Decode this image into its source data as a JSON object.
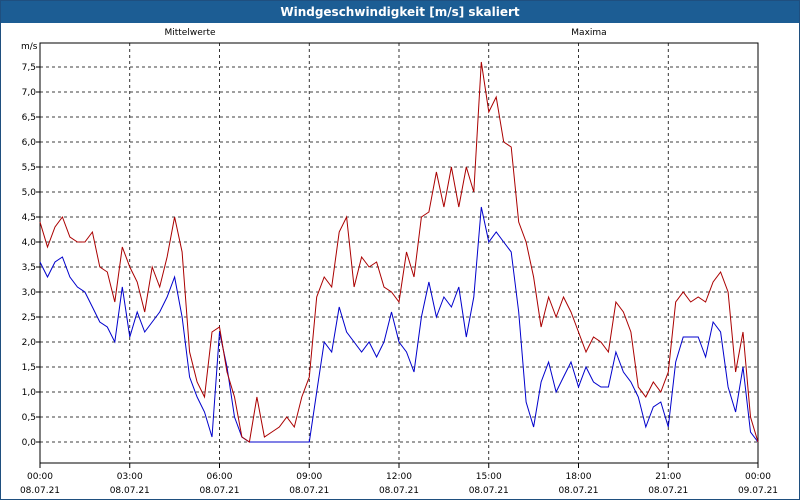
{
  "window": {
    "title": "Windgeschwindigkeit [m/s] skaliert"
  },
  "colors": {
    "mean": "#0000cc",
    "max": "#aa0000",
    "grid": "#000000",
    "titlebar": "#1c5d94"
  },
  "chart_data": {
    "type": "line",
    "title": "Windgeschwindigkeit [m/s] skaliert",
    "ylabel": "m/s",
    "xlabel": "",
    "ylim": [
      0,
      7.5
    ],
    "y_ticks": [
      "0,0",
      "0,5",
      "1,0",
      "1,5",
      "2,0",
      "2,5",
      "3,0",
      "3,5",
      "4,0",
      "4,5",
      "5,0",
      "5,5",
      "6,0",
      "6,5",
      "7,0",
      "7,5"
    ],
    "xlim": [
      0,
      24
    ],
    "x_ticks": [
      {
        "time": "00:00",
        "date": "08.07.21"
      },
      {
        "time": "03:00",
        "date": "08.07.21"
      },
      {
        "time": "06:00",
        "date": "08.07.21"
      },
      {
        "time": "09:00",
        "date": "08.07.21"
      },
      {
        "time": "12:00",
        "date": "08.07.21"
      },
      {
        "time": "15:00",
        "date": "08.07.21"
      },
      {
        "time": "18:00",
        "date": "08.07.21"
      },
      {
        "time": "21:00",
        "date": "08.07.21"
      },
      {
        "time": "00:00",
        "date": "09.07.21"
      }
    ],
    "grid": true,
    "series": [
      {
        "name": "Mittelwerte",
        "key": "mean",
        "x": [
          0,
          0.25,
          0.5,
          0.75,
          1,
          1.25,
          1.5,
          1.75,
          2,
          2.25,
          2.5,
          2.75,
          3,
          3.25,
          3.5,
          3.75,
          4,
          4.25,
          4.5,
          4.75,
          5,
          5.25,
          5.5,
          5.75,
          6,
          6.25,
          6.5,
          6.75,
          7,
          7.25,
          7.5,
          7.75,
          8,
          8.25,
          8.5,
          8.75,
          9,
          9.25,
          9.5,
          9.75,
          10,
          10.25,
          10.5,
          10.75,
          11,
          11.25,
          11.5,
          11.75,
          12,
          12.25,
          12.5,
          12.75,
          13,
          13.25,
          13.5,
          13.75,
          14,
          14.25,
          14.5,
          14.75,
          15,
          15.25,
          15.5,
          15.75,
          16,
          16.25,
          16.5,
          16.75,
          17,
          17.25,
          17.5,
          17.75,
          18,
          18.25,
          18.5,
          18.75,
          19,
          19.25,
          19.5,
          19.75,
          20,
          20.25,
          20.5,
          20.75,
          21,
          21.25,
          21.5,
          21.75,
          22,
          22.25,
          22.5,
          22.75,
          23,
          23.25,
          23.5,
          23.75,
          24
        ],
        "values": [
          3.6,
          3.3,
          3.6,
          3.7,
          3.3,
          3.1,
          3.0,
          2.7,
          2.4,
          2.3,
          2.0,
          3.1,
          2.1,
          2.6,
          2.2,
          2.4,
          2.6,
          2.9,
          3.3,
          2.5,
          1.3,
          0.9,
          0.6,
          0.1,
          2.2,
          1.5,
          0.5,
          0.1,
          0.0,
          0.0,
          0.0,
          0.0,
          0.0,
          0.0,
          0.0,
          0.0,
          0.0,
          1.0,
          2.0,
          1.8,
          2.7,
          2.2,
          2.0,
          1.8,
          2.0,
          1.7,
          2.0,
          2.6,
          2.0,
          1.8,
          1.4,
          2.5,
          3.2,
          2.5,
          2.9,
          2.7,
          3.1,
          2.1,
          2.9,
          4.7,
          4.0,
          4.2,
          4.0,
          3.8,
          2.6,
          0.8,
          0.3,
          1.2,
          1.6,
          1.0,
          1.3,
          1.6,
          1.1,
          1.5,
          1.2,
          1.1,
          1.1,
          1.8,
          1.4,
          1.2,
          0.9,
          0.3,
          0.7,
          0.8,
          0.3,
          1.6,
          2.1,
          2.1,
          2.1,
          1.7,
          2.4,
          2.2,
          1.1,
          0.6,
          1.5,
          0.2,
          0.0
        ]
      },
      {
        "name": "Maxima",
        "key": "max",
        "x": [
          0,
          0.25,
          0.5,
          0.75,
          1,
          1.25,
          1.5,
          1.75,
          2,
          2.25,
          2.5,
          2.75,
          3,
          3.25,
          3.5,
          3.75,
          4,
          4.25,
          4.5,
          4.75,
          5,
          5.25,
          5.5,
          5.75,
          6,
          6.25,
          6.5,
          6.75,
          7,
          7.25,
          7.5,
          7.75,
          8,
          8.25,
          8.5,
          8.75,
          9,
          9.25,
          9.5,
          9.75,
          10,
          10.25,
          10.5,
          10.75,
          11,
          11.25,
          11.5,
          11.75,
          12,
          12.25,
          12.5,
          12.75,
          13,
          13.25,
          13.5,
          13.75,
          14,
          14.25,
          14.5,
          14.75,
          15,
          15.25,
          15.5,
          15.75,
          16,
          16.25,
          16.5,
          16.75,
          17,
          17.25,
          17.5,
          17.75,
          18,
          18.25,
          18.5,
          18.75,
          19,
          19.25,
          19.5,
          19.75,
          20,
          20.25,
          20.5,
          20.75,
          21,
          21.25,
          21.5,
          21.75,
          22,
          22.25,
          22.5,
          22.75,
          23,
          23.25,
          23.5,
          23.75,
          24
        ],
        "values": [
          4.4,
          3.9,
          4.3,
          4.5,
          4.1,
          4.0,
          4.0,
          4.2,
          3.5,
          3.4,
          2.8,
          3.9,
          3.5,
          3.2,
          2.6,
          3.5,
          3.1,
          3.7,
          4.5,
          3.8,
          1.8,
          1.2,
          0.9,
          2.2,
          2.3,
          1.4,
          0.9,
          0.1,
          0.0,
          0.9,
          0.1,
          0.2,
          0.3,
          0.5,
          0.3,
          0.9,
          1.3,
          2.9,
          3.3,
          3.1,
          4.2,
          4.5,
          3.1,
          3.7,
          3.5,
          3.6,
          3.1,
          3.0,
          2.8,
          3.8,
          3.3,
          4.5,
          4.6,
          5.4,
          4.7,
          5.5,
          4.7,
          5.5,
          5.0,
          7.6,
          6.6,
          6.9,
          6.0,
          5.9,
          4.4,
          4.0,
          3.3,
          2.3,
          2.9,
          2.5,
          2.9,
          2.6,
          2.2,
          1.8,
          2.1,
          2.0,
          1.8,
          2.8,
          2.6,
          2.2,
          1.1,
          0.9,
          1.2,
          1.0,
          1.4,
          2.8,
          3.0,
          2.8,
          2.9,
          2.8,
          3.2,
          3.4,
          3.0,
          1.4,
          2.2,
          0.5,
          0.0
        ]
      }
    ]
  }
}
